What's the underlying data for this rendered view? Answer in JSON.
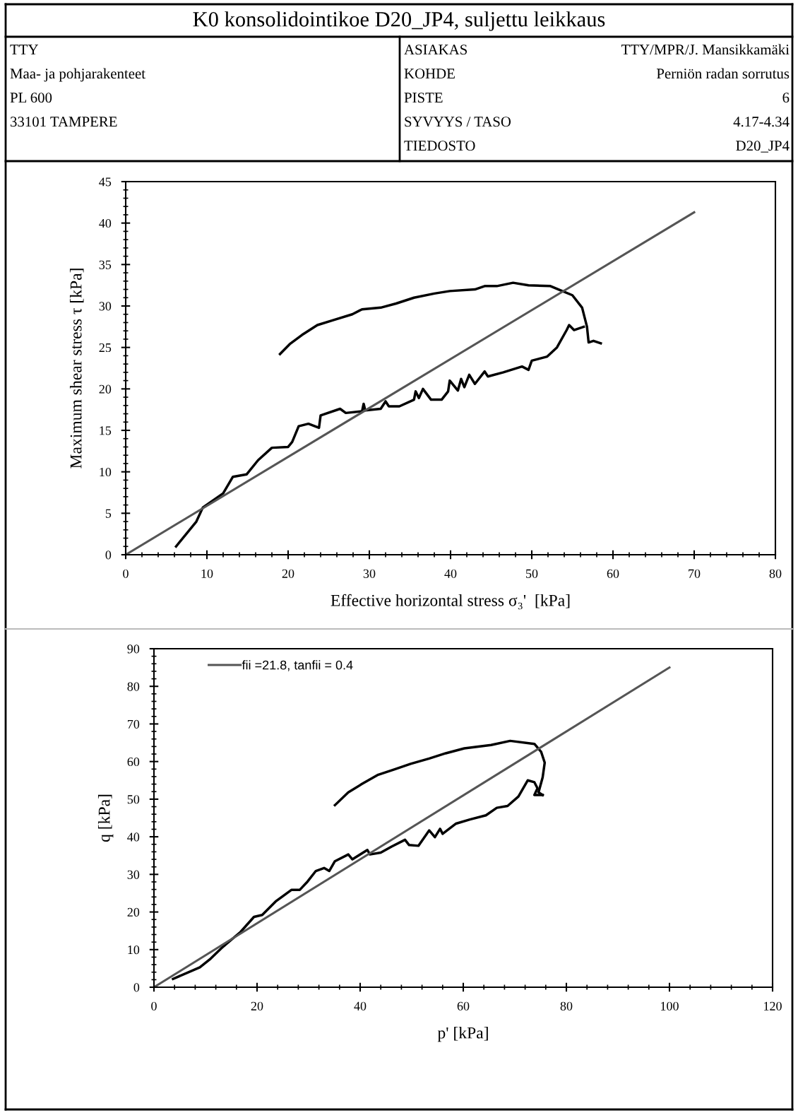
{
  "chart_data": [
    {
      "type": "line",
      "title": "K0 konsolidointikoe D20_JP4, suljettu leikkaus",
      "annotations": [
        "TTY",
        "Maa- ja pohjarakenteet",
        "PL 600",
        "33101 TAMPERE",
        "ASIAKAS",
        "TTY/MPR/J. Mansikkamäki",
        "KOHDE",
        "Perniön radan sorrutus",
        "PISTE",
        "6",
        "SYVYYS / TASO",
        "4.17-4.34",
        "TIEDOSTO",
        "D20_JP4"
      ],
      "xlabel": "Effective horizontal stress σ₃'  [kPa]",
      "ylabel": "Maximum shear stress τ [kPa]",
      "xlim": [
        0,
        80
      ],
      "xticks": [
        0,
        10,
        20,
        30,
        40,
        50,
        60,
        70,
        80
      ],
      "ylim": [
        0,
        45
      ],
      "yticks": [
        0,
        5,
        10,
        15,
        20,
        25,
        30,
        35,
        40,
        45
      ],
      "grid": false,
      "legend": false,
      "series": [
        {
          "color": "#000000",
          "x": [
            6.2,
            8.7,
            9.5,
            12.0,
            13.2,
            14.9,
            16.3,
            18.0,
            20.0,
            20.5,
            21.3,
            22.5,
            23.8,
            24.0,
            26.4,
            27.1,
            29.1,
            29.3,
            29.5,
            31.4,
            32.0,
            32.4,
            33.7,
            35.5,
            35.7,
            36.1,
            36.6,
            37.6,
            38.9,
            39.7,
            39.9,
            40.9,
            41.3,
            41.7,
            42.3,
            43.0,
            44.2,
            44.6,
            46.5,
            48.8,
            49.6,
            50.0,
            51.9,
            53.1,
            54.3,
            54.6,
            55.2,
            56.4
          ],
          "values": [
            1.0,
            4.0,
            5.7,
            7.4,
            9.4,
            9.7,
            11.4,
            12.9,
            13.0,
            13.6,
            15.5,
            15.8,
            15.3,
            16.8,
            17.6,
            17.1,
            17.3,
            18.2,
            17.4,
            17.6,
            18.5,
            17.9,
            17.9,
            18.7,
            19.7,
            18.9,
            20.0,
            18.7,
            18.7,
            19.7,
            21.0,
            19.8,
            21.2,
            20.2,
            21.7,
            20.6,
            22.1,
            21.5,
            22.0,
            22.7,
            22.3,
            23.4,
            23.9,
            25.0,
            27.1,
            27.7,
            27.1,
            27.5
          ]
        },
        {
          "color": "#000000",
          "x": [
            19.0,
            20.2,
            21.7,
            23.6,
            25.6,
            27.9,
            29.1,
            31.4,
            33.3,
            35.5,
            38.0,
            39.9,
            43.0,
            44.2,
            45.7,
            47.7,
            49.6,
            52.3,
            53.5,
            55.0,
            56.2,
            56.8,
            57.0,
            57.6,
            58.5
          ],
          "values": [
            24.2,
            25.4,
            26.5,
            27.7,
            28.3,
            29.0,
            29.6,
            29.8,
            30.3,
            31.0,
            31.5,
            31.8,
            32.0,
            32.4,
            32.4,
            32.8,
            32.5,
            32.4,
            31.9,
            31.3,
            29.8,
            27.5,
            25.6,
            25.8,
            25.5
          ]
        },
        {
          "color": "#555555",
          "x": [
            0,
            70
          ],
          "values": [
            0,
            41.3
          ]
        }
      ]
    },
    {
      "type": "line",
      "xlabel": "p' [kPa]",
      "ylabel": "q [kPa]",
      "xlim": [
        0,
        120
      ],
      "xticks": [
        0,
        20,
        40,
        60,
        80,
        100,
        120
      ],
      "ylim": [
        0,
        90
      ],
      "yticks": [
        0,
        10,
        20,
        30,
        40,
        50,
        60,
        70,
        80,
        90
      ],
      "grid": false,
      "legend": "top left",
      "series": [
        {
          "color": "#000000",
          "x": [
            3.7,
            8.9,
            11.0,
            13.1,
            16.8,
            19.4,
            21.0,
            23.6,
            26.7,
            28.3,
            29.8,
            31.4,
            33.0,
            34.0,
            35.1,
            37.7,
            38.5,
            41.4,
            41.9,
            44.0,
            46.1,
            48.7,
            49.5,
            51.3,
            53.4,
            54.5,
            55.5,
            56.0,
            58.6,
            61.3,
            64.4,
            66.5,
            68.6,
            70.7,
            72.5,
            73.8,
            74.4,
            73.8,
            75.4
          ],
          "values": [
            2.2,
            5.3,
            7.6,
            10.4,
            14.7,
            18.7,
            19.2,
            22.8,
            25.9,
            25.9,
            28.1,
            30.9,
            31.7,
            30.9,
            33.5,
            35.3,
            34.0,
            36.5,
            35.3,
            35.8,
            37.4,
            39.2,
            37.8,
            37.6,
            41.7,
            39.9,
            42.1,
            40.8,
            43.5,
            44.6,
            45.7,
            47.7,
            48.2,
            50.7,
            55.0,
            54.5,
            52.9,
            51.1,
            51.1
          ]
        },
        {
          "color": "#000000",
          "x": [
            35.1,
            37.7,
            40.3,
            43.5,
            46.6,
            49.8,
            53.4,
            56.6,
            60.2,
            65.4,
            69.1,
            73.8,
            75.1,
            75.8,
            75.4,
            74.6,
            75.4
          ],
          "values": [
            48.4,
            51.8,
            54.0,
            56.5,
            57.9,
            59.4,
            60.8,
            62.2,
            63.5,
            64.4,
            65.5,
            64.7,
            62.6,
            59.7,
            55.8,
            51.8,
            51.1
          ]
        },
        {
          "name": "fii =21.8, tanfii = 0.4",
          "color": "#555555",
          "x": [
            0,
            100
          ],
          "values": [
            0,
            85.0
          ]
        }
      ]
    }
  ]
}
